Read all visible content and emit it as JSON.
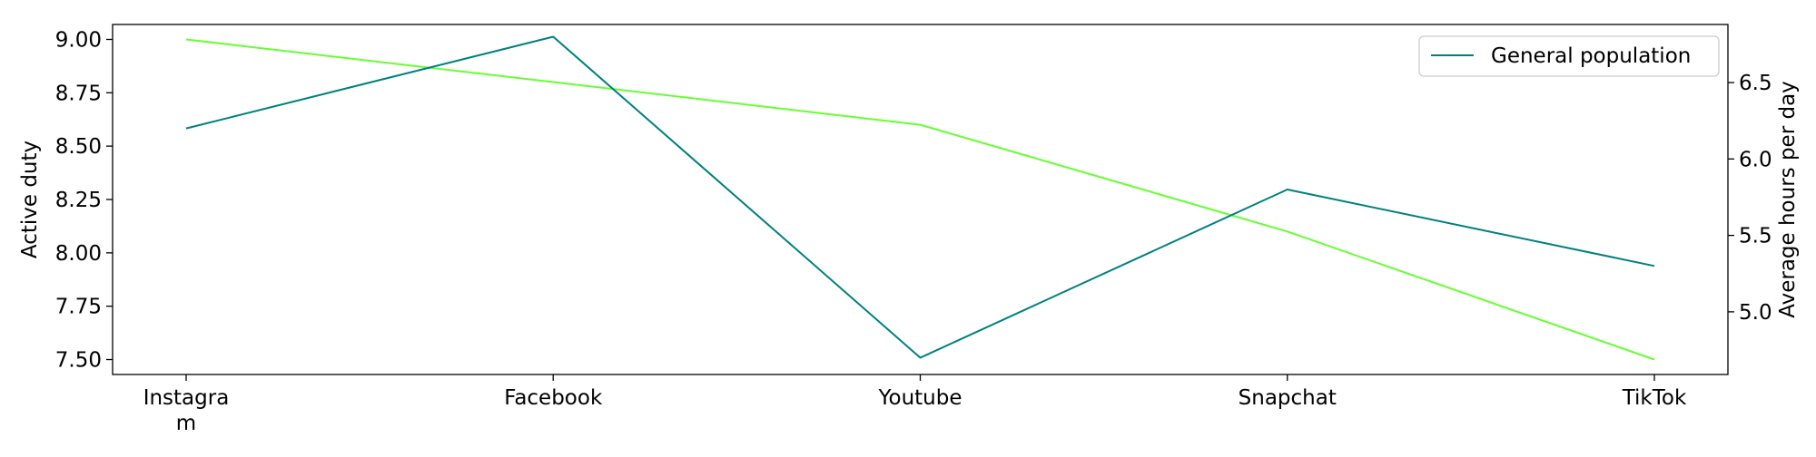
{
  "chart_data": {
    "type": "line",
    "categories": [
      "Instagram",
      "Facebook",
      "Youtube",
      "Snapchat",
      "TikTok"
    ],
    "category_tick_labels": [
      [
        "Instagra",
        "m"
      ],
      [
        "Facebook"
      ],
      [
        "Youtube"
      ],
      [
        "Snapchat"
      ],
      [
        "TikTok"
      ]
    ],
    "left_axis": {
      "label": "Active duty",
      "ylim": [
        7.43,
        9.07
      ],
      "ticks": [
        7.5,
        7.75,
        8.0,
        8.25,
        8.5,
        8.75,
        9.0
      ],
      "tick_labels": [
        "7.50",
        "7.75",
        "8.00",
        "8.25",
        "8.50",
        "8.75",
        "9.00"
      ]
    },
    "right_axis": {
      "label": "Average hours per day",
      "ylim": [
        4.59,
        6.88
      ],
      "ticks": [
        5.0,
        5.5,
        6.0,
        6.5
      ],
      "tick_labels": [
        "5.0",
        "5.5",
        "6.0",
        "6.5"
      ]
    },
    "series": [
      {
        "axis": "left",
        "color": "#66ff33",
        "values": [
          9.0,
          8.8,
          8.6,
          8.1,
          7.5
        ]
      },
      {
        "name": "General population",
        "axis": "right",
        "color": "#008080",
        "values": [
          6.2,
          6.8,
          4.7,
          5.8,
          5.3
        ]
      }
    ],
    "grid": false,
    "legend": {
      "position": "top-right",
      "entries": [
        "General population"
      ]
    }
  }
}
